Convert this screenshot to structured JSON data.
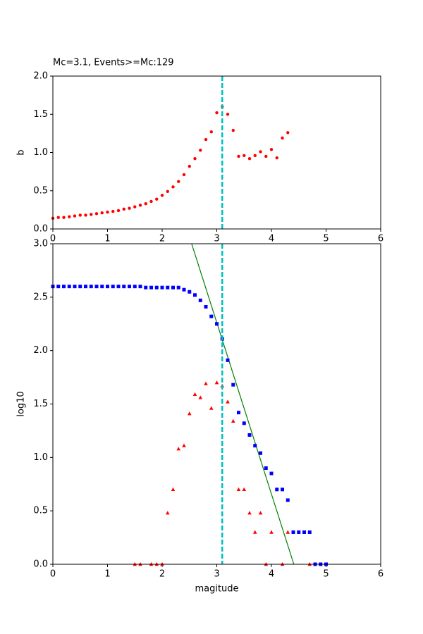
{
  "chart_data": [
    {
      "type": "scatter",
      "title": "Mc=3.1, Events>=Mc:129",
      "ylabel": "b",
      "xlim": [
        0,
        6
      ],
      "ylim": [
        0,
        2
      ],
      "xticks": [
        0,
        1,
        2,
        3,
        4,
        5,
        6
      ],
      "yticks": [
        {
          "value": 0,
          "label": "0.0"
        },
        {
          "value": 0.5,
          "label": "0.5"
        },
        {
          "value": 1,
          "label": "1.0"
        },
        {
          "value": 1.5,
          "label": "1.5"
        },
        {
          "value": 2,
          "label": "2.0"
        }
      ],
      "vline": 3.1,
      "vline_color": "#00bfbf",
      "series": [
        {
          "color": "#ff0000",
          "marker": "circle",
          "x": [
            0,
            0.1,
            0.2,
            0.3,
            0.4,
            0.5,
            0.6,
            0.7,
            0.8,
            0.9,
            1.0,
            1.1,
            1.2,
            1.3,
            1.4,
            1.5,
            1.6,
            1.7,
            1.8,
            1.9,
            2.0,
            2.1,
            2.2,
            2.3,
            2.4,
            2.5,
            2.6,
            2.7,
            2.8,
            2.9,
            3.0,
            3.1,
            3.2,
            3.3,
            3.4,
            3.5,
            3.6,
            3.7,
            3.8,
            3.9,
            4.0,
            4.1,
            4.2,
            4.3
          ],
          "values": [
            0.14,
            0.15,
            0.15,
            0.16,
            0.17,
            0.18,
            0.18,
            0.19,
            0.2,
            0.21,
            0.22,
            0.23,
            0.24,
            0.26,
            0.27,
            0.29,
            0.31,
            0.33,
            0.36,
            0.39,
            0.44,
            0.49,
            0.55,
            0.62,
            0.71,
            0.82,
            0.92,
            1.03,
            1.17,
            1.27,
            1.52,
            1.6,
            1.5,
            1.29,
            0.95,
            0.96,
            0.92,
            0.96,
            1.01,
            0.95,
            1.04,
            0.93,
            1.19,
            1.26
          ]
        }
      ]
    },
    {
      "type": "scatter",
      "xlabel": "magitude",
      "ylabel": "log10",
      "xlim": [
        0,
        6
      ],
      "ylim": [
        0,
        3
      ],
      "xticks": [
        0,
        1,
        2,
        3,
        4,
        5,
        6
      ],
      "yticks": [
        {
          "value": 0,
          "label": "0.0"
        },
        {
          "value": 0.5,
          "label": "0.5"
        },
        {
          "value": 1,
          "label": "1.0"
        },
        {
          "value": 1.5,
          "label": "1.5"
        },
        {
          "value": 2,
          "label": "2.0"
        },
        {
          "value": 2.5,
          "label": "2.5"
        },
        {
          "value": 3,
          "label": "3.0"
        }
      ],
      "vline": 3.1,
      "vline_color": "#00bfbf",
      "fit": {
        "color": "#008000",
        "x": [
          2.54,
          4.41
        ],
        "values": [
          3.0,
          0.0
        ]
      },
      "series": [
        {
          "color": "#0000ff",
          "marker": "square",
          "x": [
            0,
            0.1,
            0.2,
            0.3,
            0.4,
            0.5,
            0.6,
            0.7,
            0.8,
            0.9,
            1.0,
            1.1,
            1.2,
            1.3,
            1.4,
            1.5,
            1.6,
            1.7,
            1.8,
            1.9,
            2.0,
            2.1,
            2.2,
            2.3,
            2.4,
            2.5,
            2.6,
            2.7,
            2.8,
            2.9,
            3.0,
            3.1,
            3.2,
            3.3,
            3.4,
            3.5,
            3.6,
            3.7,
            3.8,
            3.9,
            4.0,
            4.1,
            4.2,
            4.3,
            4.4,
            4.5,
            4.6,
            4.7,
            4.8,
            4.9,
            5.0
          ],
          "values": [
            2.6,
            2.6,
            2.6,
            2.6,
            2.6,
            2.6,
            2.6,
            2.6,
            2.6,
            2.6,
            2.6,
            2.6,
            2.6,
            2.6,
            2.6,
            2.6,
            2.6,
            2.59,
            2.59,
            2.59,
            2.59,
            2.59,
            2.59,
            2.59,
            2.57,
            2.55,
            2.52,
            2.47,
            2.41,
            2.32,
            2.25,
            2.11,
            1.91,
            1.68,
            1.42,
            1.32,
            1.21,
            1.11,
            1.04,
            0.9,
            0.85,
            0.7,
            0.7,
            0.6,
            0.3,
            0.3,
            0.3,
            0.3,
            0,
            0,
            0
          ]
        },
        {
          "color": "#ff0000",
          "marker": "triangle",
          "x": [
            1.5,
            1.6,
            1.8,
            1.9,
            2.0,
            2.1,
            2.2,
            2.3,
            2.4,
            2.5,
            2.6,
            2.7,
            2.8,
            2.9,
            3.0,
            3.1,
            3.2,
            3.3,
            3.4,
            3.5,
            3.6,
            3.7,
            3.8,
            3.9,
            4.0,
            4.2,
            4.3,
            4.7
          ],
          "values": [
            0,
            0,
            0,
            0,
            0,
            0.48,
            0.7,
            1.08,
            1.11,
            1.41,
            1.59,
            1.56,
            1.69,
            1.46,
            1.7,
            1.67,
            1.52,
            1.34,
            0.7,
            0.7,
            0.48,
            0.3,
            0.48,
            0,
            0.3,
            0,
            0.3,
            0
          ]
        }
      ]
    }
  ]
}
